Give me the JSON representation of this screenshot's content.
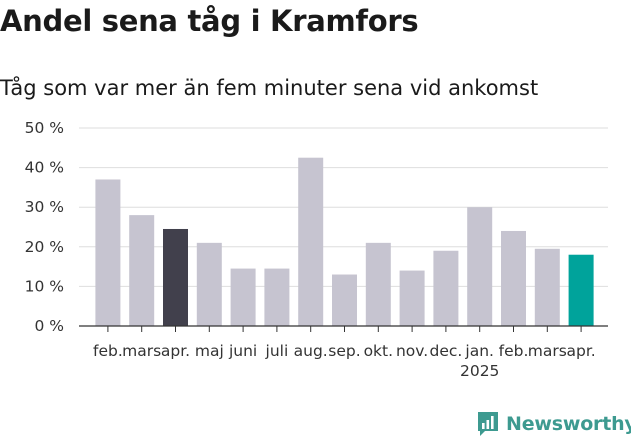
{
  "title": "Andel sena tåg i Kramfors",
  "subtitle": "Tåg som var mer än fem minuter sena vid ankomst",
  "chart_data": {
    "type": "bar",
    "title": "Andel sena tåg i Kramfors",
    "subtitle": "Tåg som var mer än fem minuter sena vid ankomst",
    "categories": [
      "feb.",
      "mars",
      "apr.",
      "maj",
      "juni",
      "juli",
      "aug.",
      "sep.",
      "okt.",
      "nov.",
      "dec.",
      "jan.",
      "feb.",
      "mars",
      "apr."
    ],
    "year_labels": [
      {
        "index": 11,
        "label": "2025"
      }
    ],
    "values": [
      37,
      28,
      24.5,
      21,
      14.5,
      14.5,
      42.5,
      13,
      21,
      14,
      19,
      30,
      24,
      19.5,
      18
    ],
    "colors": [
      "#c6c4d0",
      "#c6c4d0",
      "#41404c",
      "#c6c4d0",
      "#c6c4d0",
      "#c6c4d0",
      "#c6c4d0",
      "#c6c4d0",
      "#c6c4d0",
      "#c6c4d0",
      "#c6c4d0",
      "#c6c4d0",
      "#c6c4d0",
      "#c6c4d0",
      "#00a39b"
    ],
    "yticks": [
      "0 %",
      "10 %",
      "20 %",
      "30 %",
      "40 %",
      "50 %"
    ],
    "ylim": [
      0,
      50
    ],
    "xlabel": "",
    "ylabel": "",
    "grid": true
  },
  "logo": {
    "text": "Newsworthy",
    "color": "#3d9a90",
    "icon": "newsworthy-bar-chart-icon"
  }
}
